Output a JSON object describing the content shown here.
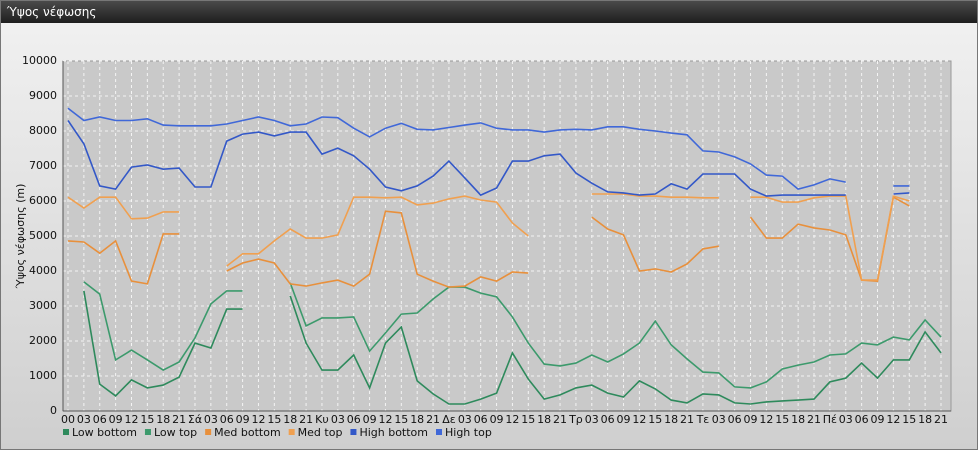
{
  "chart_data": {
    "type": "line",
    "title": "Ύψος νέφωσης",
    "y_label": "Ύψος νέφωσης (m)",
    "categories": [
      "00",
      "03",
      "06",
      "09",
      "12",
      "15",
      "18",
      "21",
      "Σά",
      "03",
      "06",
      "09",
      "12",
      "15",
      "18",
      "21",
      "Κυ",
      "03",
      "06",
      "09",
      "12",
      "15",
      "18",
      "21",
      "Δε",
      "03",
      "06",
      "09",
      "12",
      "15",
      "18",
      "21",
      "Τρ",
      "03",
      "06",
      "09",
      "12",
      "15",
      "18",
      "21",
      "Τε",
      "03",
      "06",
      "09",
      "12",
      "15",
      "18",
      "21",
      "Πέ",
      "03",
      "06",
      "09",
      "12",
      "15",
      "18",
      "21"
    ],
    "ylim": [
      0,
      10000
    ],
    "yticks": [
      0,
      1000,
      2000,
      3000,
      4000,
      5000,
      6000,
      7000,
      8000,
      9000,
      10000
    ],
    "grid": true,
    "series": [
      {
        "name": "Low bottom",
        "color": "#2e8a5c",
        "values": [
          null,
          3430,
          770,
          430,
          890,
          660,
          740,
          970,
          1940,
          1800,
          2910,
          2910,
          null,
          null,
          3290,
          1940,
          1170,
          1170,
          1600,
          660,
          1940,
          2400,
          860,
          490,
          200,
          200,
          340,
          510,
          1660,
          910,
          340,
          460,
          660,
          740,
          510,
          400,
          860,
          630,
          310,
          230,
          490,
          460,
          230,
          200,
          260,
          290,
          310,
          340,
          830,
          940,
          1370,
          940,
          1460,
          1460,
          2260,
          1660
        ]
      },
      {
        "name": "Low top",
        "color": "#3c9a6c",
        "values": [
          null,
          3690,
          3340,
          1460,
          1740,
          1460,
          1170,
          1400,
          2090,
          3060,
          3430,
          3430,
          null,
          null,
          3660,
          2430,
          2660,
          2660,
          2690,
          1710,
          2230,
          2770,
          2800,
          3200,
          3540,
          3540,
          3370,
          3260,
          2690,
          1940,
          1340,
          1290,
          1370,
          1600,
          1400,
          1630,
          1940,
          2570,
          1890,
          1490,
          1110,
          1090,
          690,
          660,
          830,
          1200,
          1310,
          1400,
          1600,
          1630,
          1940,
          1890,
          2110,
          2030,
          2600,
          2110
        ]
      },
      {
        "name": "Med bottom",
        "color": "#e8903c",
        "values": [
          4860,
          4830,
          4510,
          4860,
          3710,
          3630,
          5060,
          5060,
          null,
          null,
          4000,
          4230,
          4340,
          4230,
          3630,
          3570,
          3660,
          3740,
          3570,
          3910,
          5710,
          5660,
          3910,
          3710,
          3540,
          3570,
          3830,
          3710,
          3970,
          3940,
          null,
          null,
          null,
          5540,
          5200,
          5030,
          4000,
          4060,
          3970,
          4200,
          4630,
          4710,
          null,
          5540,
          4940,
          4940,
          5340,
          5230,
          5170,
          5030,
          3740,
          3710,
          6110,
          5860,
          null,
          null
        ]
      },
      {
        "name": "Med top",
        "color": "#f0a050",
        "values": [
          6110,
          5800,
          6110,
          6110,
          5490,
          5510,
          5690,
          5690,
          null,
          null,
          4140,
          4490,
          4490,
          4860,
          5200,
          4940,
          4940,
          5030,
          6110,
          6110,
          6090,
          6110,
          5890,
          5940,
          6060,
          6140,
          6030,
          5970,
          5370,
          5000,
          null,
          null,
          null,
          6200,
          6200,
          6200,
          6140,
          6140,
          6110,
          6110,
          6090,
          6090,
          null,
          6110,
          6110,
          5970,
          5970,
          6090,
          6140,
          6140,
          3740,
          3740,
          6140,
          6000,
          null,
          null
        ]
      },
      {
        "name": "High bottom",
        "color": "#3358c8",
        "values": [
          8300,
          7630,
          6430,
          6340,
          6970,
          7030,
          6910,
          6940,
          6400,
          6400,
          7710,
          7910,
          7970,
          7860,
          7970,
          7970,
          7340,
          7510,
          7290,
          6910,
          6400,
          6290,
          6430,
          6710,
          7140,
          6660,
          6170,
          6370,
          7140,
          7140,
          7290,
          7340,
          6800,
          6510,
          6260,
          6230,
          6170,
          6200,
          6490,
          6340,
          6770,
          6770,
          6770,
          6340,
          6140,
          6170,
          6170,
          6170,
          6170,
          6170,
          null,
          null,
          6200,
          6230,
          null,
          null
        ]
      },
      {
        "name": "High top",
        "color": "#4068d8",
        "values": [
          8650,
          8300,
          8400,
          8300,
          8300,
          8350,
          8170,
          8150,
          8150,
          8150,
          8200,
          8300,
          8400,
          8300,
          8150,
          8200,
          8400,
          8380,
          8080,
          7830,
          8080,
          8220,
          8050,
          8030,
          8100,
          8170,
          8230,
          8080,
          8030,
          8030,
          7970,
          8030,
          8050,
          8030,
          8120,
          8120,
          8050,
          8000,
          7940,
          7890,
          7430,
          7400,
          7260,
          7060,
          6740,
          6710,
          6340,
          6460,
          6630,
          6540,
          null,
          null,
          6430,
          6430,
          null,
          null
        ]
      }
    ]
  }
}
